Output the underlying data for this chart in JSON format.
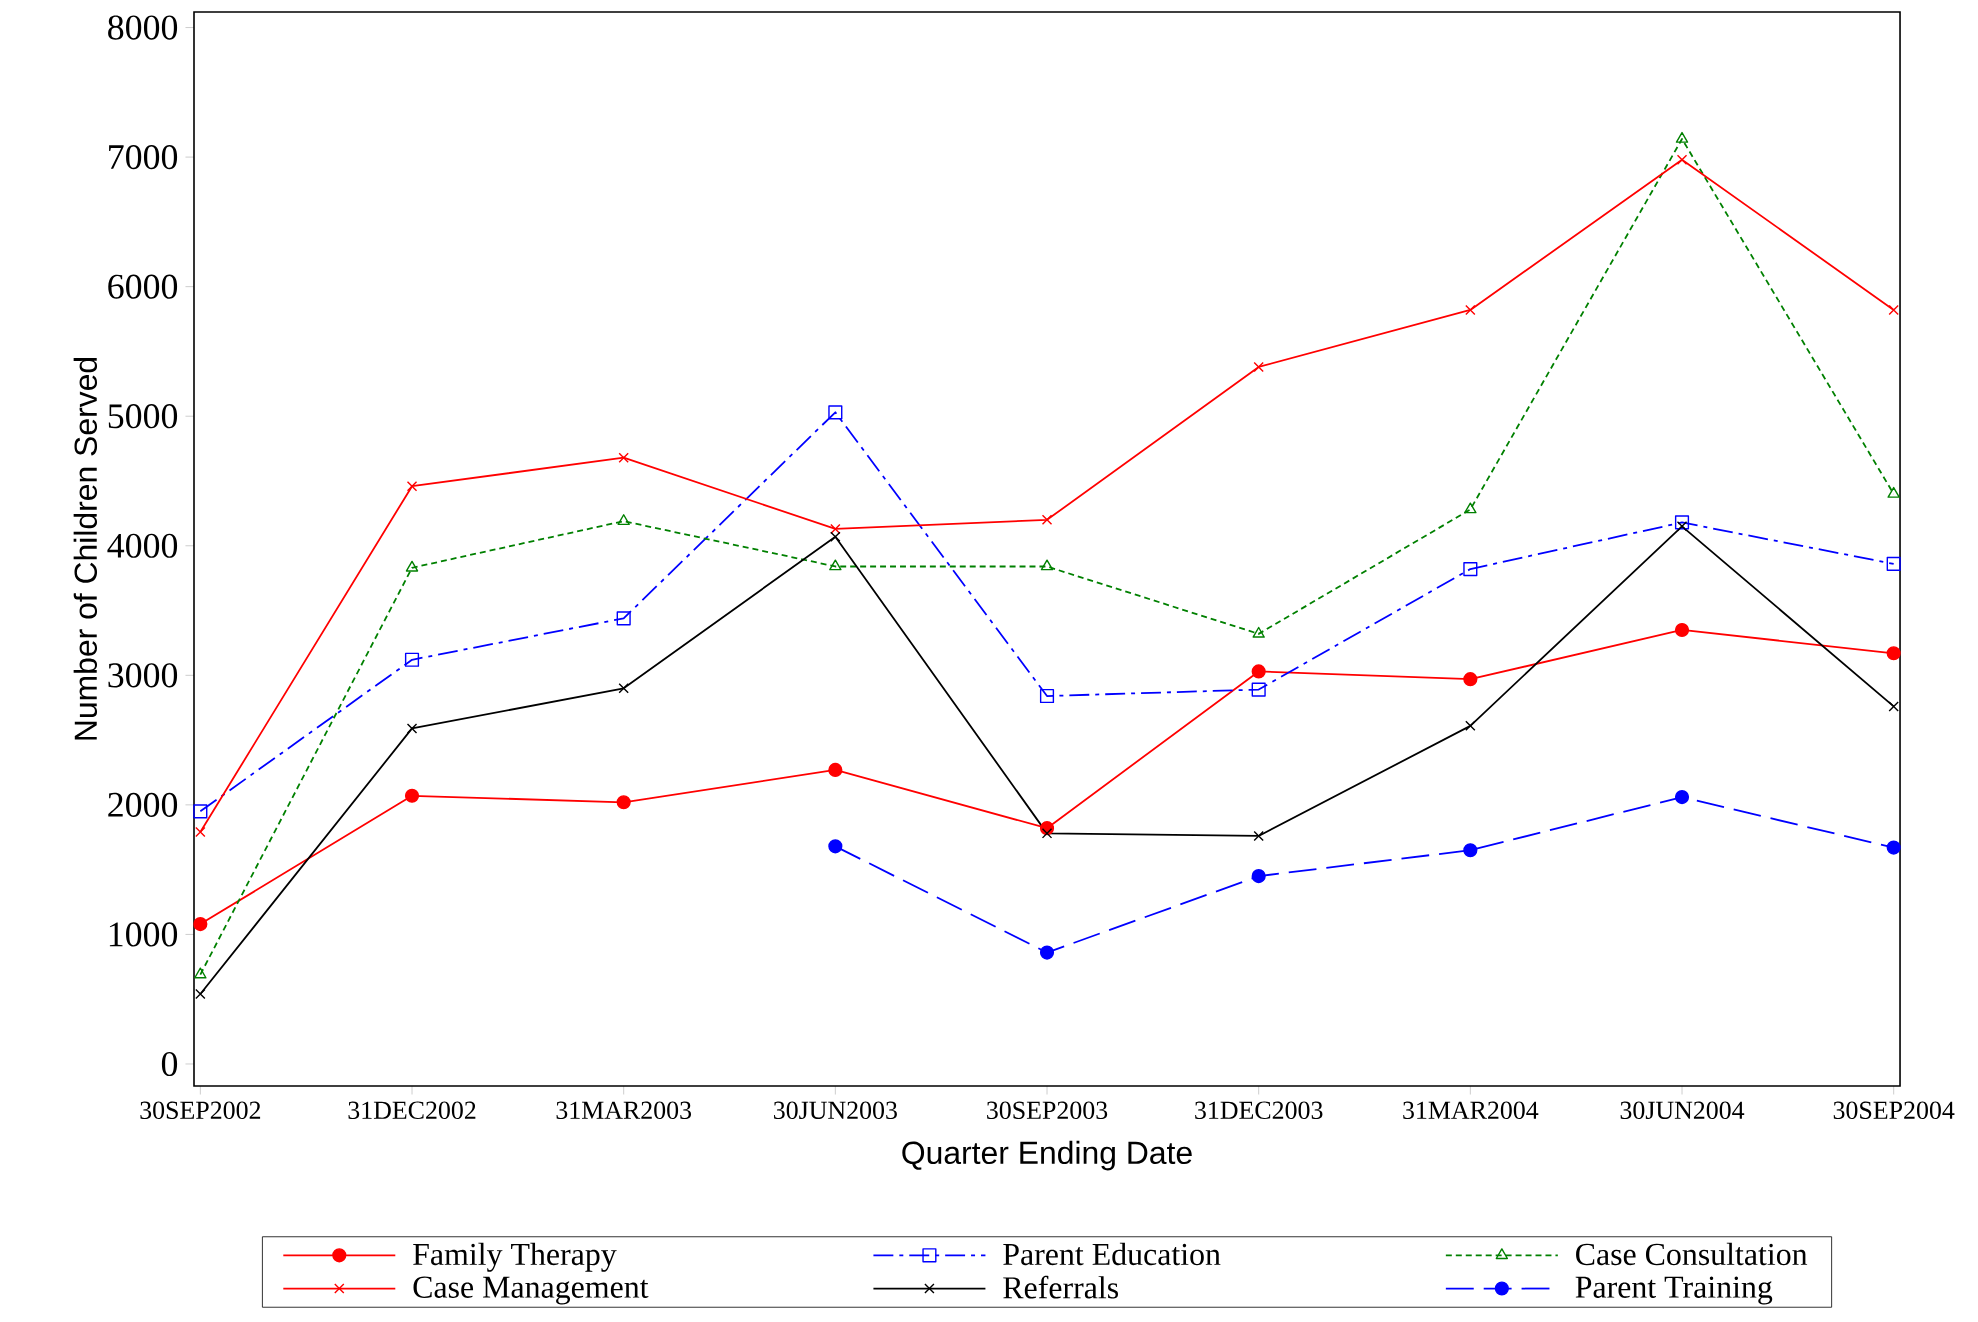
{
  "chart_data": {
    "type": "line",
    "xlabel": "Quarter Ending Date",
    "ylabel": "Number of Children Served",
    "categories": [
      "30SEP2002",
      "31DEC2002",
      "31MAR2003",
      "30JUN2003",
      "30SEP2003",
      "31DEC2003",
      "31MAR2004",
      "30JUN2004",
      "30SEP2004"
    ],
    "ylim": [
      -170,
      8120
    ],
    "yticks": [
      0,
      1000,
      2000,
      3000,
      4000,
      5000,
      6000,
      7000,
      8000
    ],
    "grid": false,
    "legend": "bottom",
    "series": [
      {
        "name": "Family Therapy",
        "color": "#ff0000",
        "marker": "circle",
        "line_style": "solid",
        "values": [
          1080,
          2070,
          2020,
          2270,
          1820,
          3030,
          2970,
          3350,
          3170
        ]
      },
      {
        "name": "Parent Education",
        "color": "#0000ff",
        "marker": "square",
        "line_style": "dashdot",
        "values": [
          1950,
          3120,
          3440,
          5030,
          2840,
          2890,
          3820,
          4180,
          3860
        ]
      },
      {
        "name": "Case Consultation",
        "color": "#008000",
        "marker": "triangle",
        "line_style": "dashed",
        "values": [
          690,
          3830,
          4190,
          3840,
          3840,
          3320,
          4280,
          7140,
          4400
        ]
      },
      {
        "name": "Case Management",
        "color": "#ff0000",
        "marker": "cross",
        "line_style": "solid",
        "values": [
          1790,
          4460,
          4680,
          4130,
          4200,
          5380,
          5820,
          6980,
          5820
        ]
      },
      {
        "name": "Referrals",
        "color": "#000000",
        "marker": "cross",
        "line_style": "solid",
        "values": [
          540,
          2590,
          2900,
          4070,
          1780,
          1760,
          2610,
          4150,
          2760
        ]
      },
      {
        "name": "Parent Training",
        "color": "#0000ff",
        "marker": "circle",
        "line_style": "longdash",
        "values": [
          null,
          null,
          null,
          1680,
          860,
          1450,
          1650,
          2060,
          1670
        ]
      }
    ]
  }
}
